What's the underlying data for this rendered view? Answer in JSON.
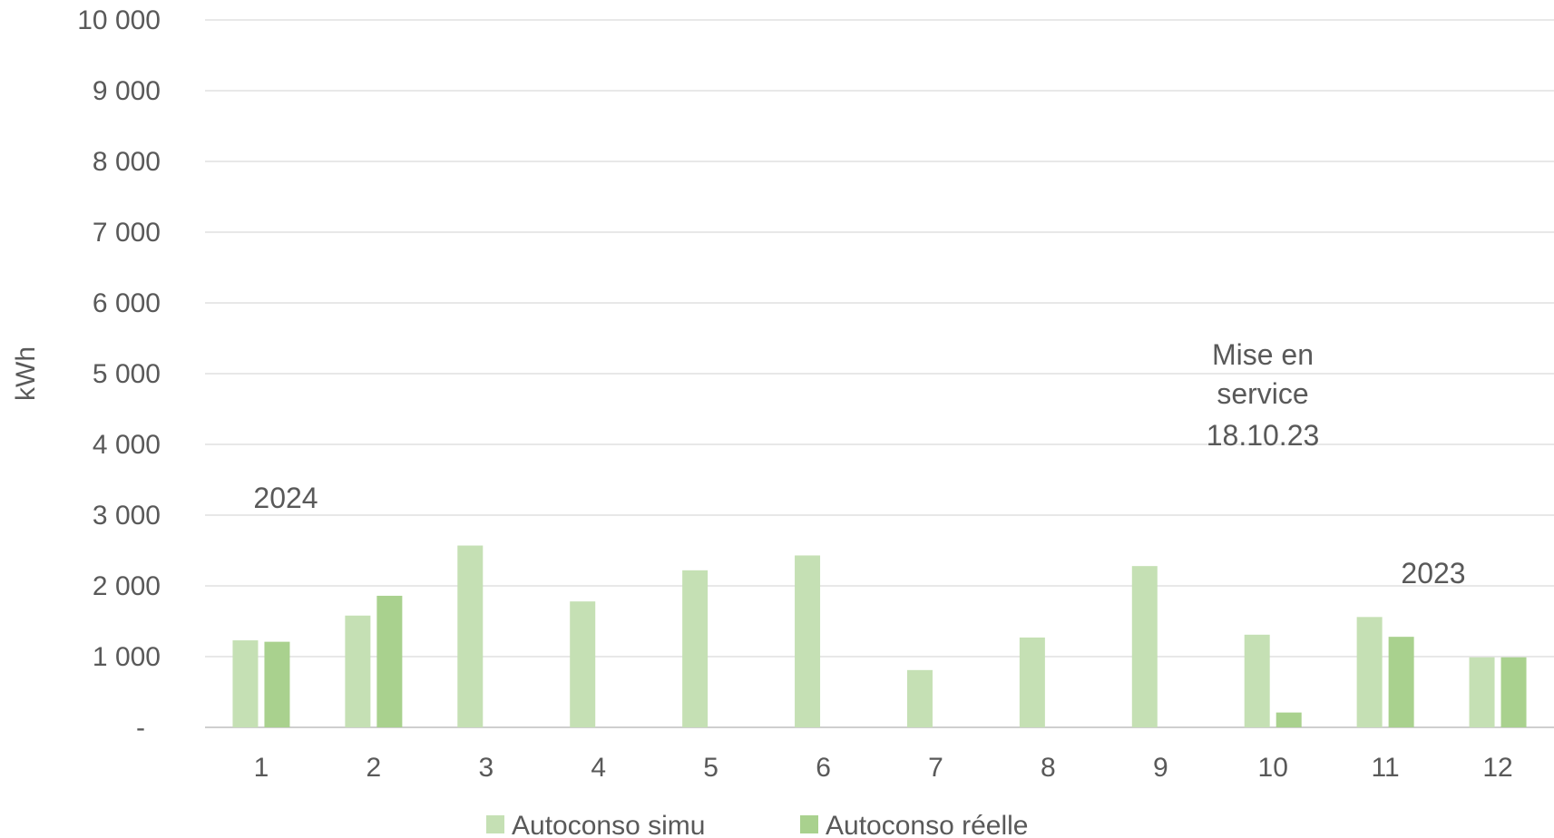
{
  "chart_data": {
    "type": "bar",
    "ylabel": "kWh",
    "xlabel": "",
    "ylim": [
      0,
      10000
    ],
    "yticks": [
      0,
      1000,
      2000,
      3000,
      4000,
      5000,
      6000,
      7000,
      8000,
      9000,
      10000
    ],
    "ytick_labels": [
      "-",
      "1 000",
      "2 000",
      "3 000",
      "4 000",
      "5 000",
      "6 000",
      "7 000",
      "8 000",
      "9 000",
      "10 000"
    ],
    "categories": [
      "1",
      "2",
      "3",
      "4",
      "5",
      "6",
      "7",
      "8",
      "9",
      "10",
      "11",
      "12"
    ],
    "series": [
      {
        "name": "Autoconso simu",
        "color": "#c5e0b4",
        "values": [
          1230,
          1580,
          2570,
          1780,
          2220,
          2430,
          810,
          1270,
          2280,
          1310,
          1560,
          990
        ]
      },
      {
        "name": "Autoconso réelle",
        "color": "#a9d18e",
        "values": [
          1210,
          1860,
          null,
          null,
          null,
          null,
          null,
          null,
          null,
          210,
          1280,
          990
        ]
      }
    ],
    "grid": true,
    "legend": "bottom",
    "gridline_color": "#d9d9d9",
    "annotations": [
      {
        "text": "2024"
      },
      {
        "text": "Mise en"
      },
      {
        "text": "service"
      },
      {
        "text": "18.10.23"
      },
      {
        "text": "2023"
      }
    ]
  }
}
